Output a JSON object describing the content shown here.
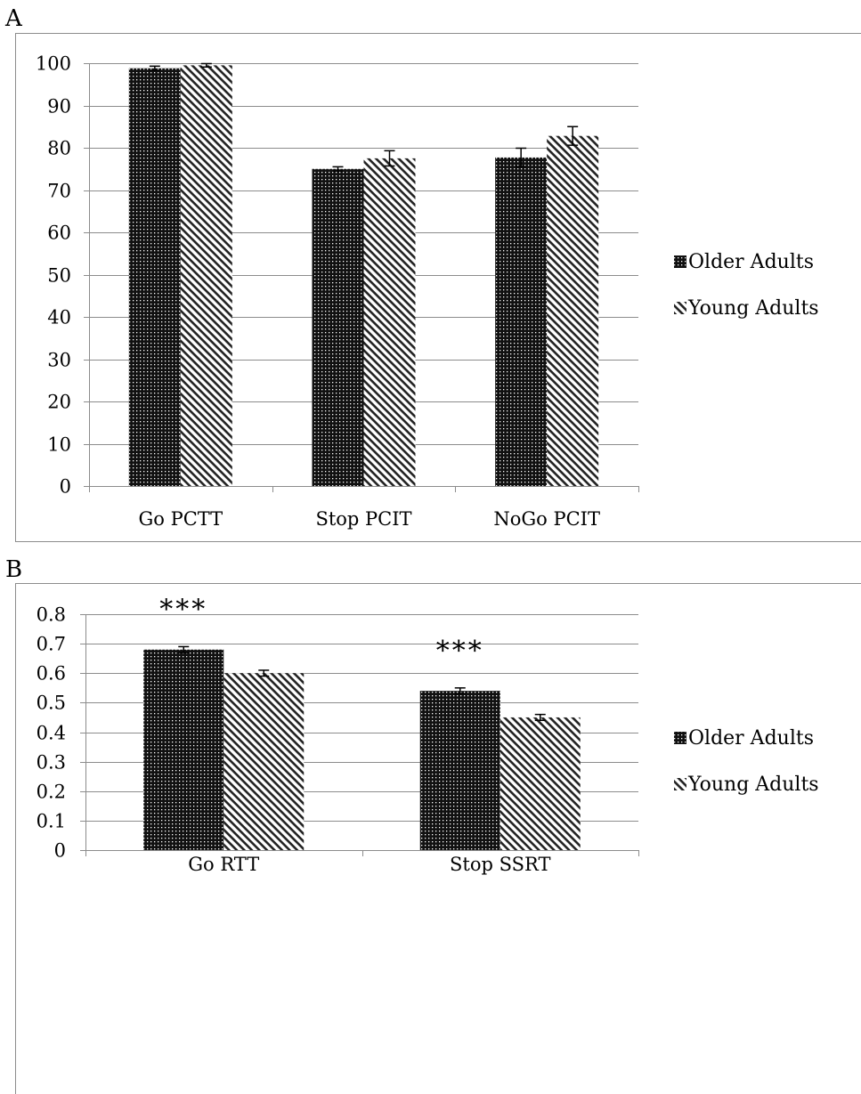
{
  "colors": {
    "older_fill": "#111111",
    "young_stripe": "#222222",
    "grid": "#8c8c8c",
    "axis": "#8c8c8c",
    "text": "#000000",
    "frame": "#8c8c8c"
  },
  "panels": [
    {
      "letter": "A"
    },
    {
      "letter": "B"
    }
  ],
  "chart_data": [
    {
      "type": "bar",
      "title": "",
      "xlabel": "",
      "ylabel": "",
      "categories": [
        "Go PCTT",
        "Stop PCIT",
        "NoGo PCIT"
      ],
      "ylim": [
        0,
        100
      ],
      "yticks": [
        0,
        10,
        20,
        30,
        40,
        50,
        60,
        70,
        80,
        90,
        100
      ],
      "ytick_labels": [
        "0",
        "10",
        "20",
        "30",
        "40",
        "50",
        "60",
        "70",
        "80",
        "90",
        "100"
      ],
      "grid": true,
      "legend": "right",
      "series": [
        {
          "name": "Older Adults",
          "values": [
            98.8,
            75.0,
            77.7
          ],
          "errors": [
            0.5,
            0.5,
            2.2
          ]
        },
        {
          "name": "Young Adults",
          "values": [
            99.5,
            77.5,
            82.8
          ],
          "errors": [
            0.4,
            1.8,
            2.2
          ]
        }
      ],
      "annotations": []
    },
    {
      "type": "bar",
      "title": "",
      "xlabel": "",
      "ylabel": "",
      "categories": [
        "Go RTT",
        "Stop SSRT"
      ],
      "ylim": [
        0,
        0.8
      ],
      "yticks": [
        0,
        0.1,
        0.2,
        0.3,
        0.4,
        0.5,
        0.6,
        0.7,
        0.8
      ],
      "ytick_labels": [
        "0",
        "0.1",
        "0.2",
        "0.3",
        "0.4",
        "0.5",
        "0.6",
        "0.7",
        "0.8"
      ],
      "grid": true,
      "legend": "right",
      "series": [
        {
          "name": "Older Adults",
          "values": [
            0.68,
            0.54
          ],
          "errors": [
            0.01,
            0.01
          ]
        },
        {
          "name": "Young Adults",
          "values": [
            0.6,
            0.45
          ],
          "errors": [
            0.01,
            0.01
          ]
        }
      ],
      "annotations": [
        {
          "category": "Go RTT",
          "text": "***"
        },
        {
          "category": "Stop SSRT",
          "text": "***"
        }
      ]
    }
  ]
}
